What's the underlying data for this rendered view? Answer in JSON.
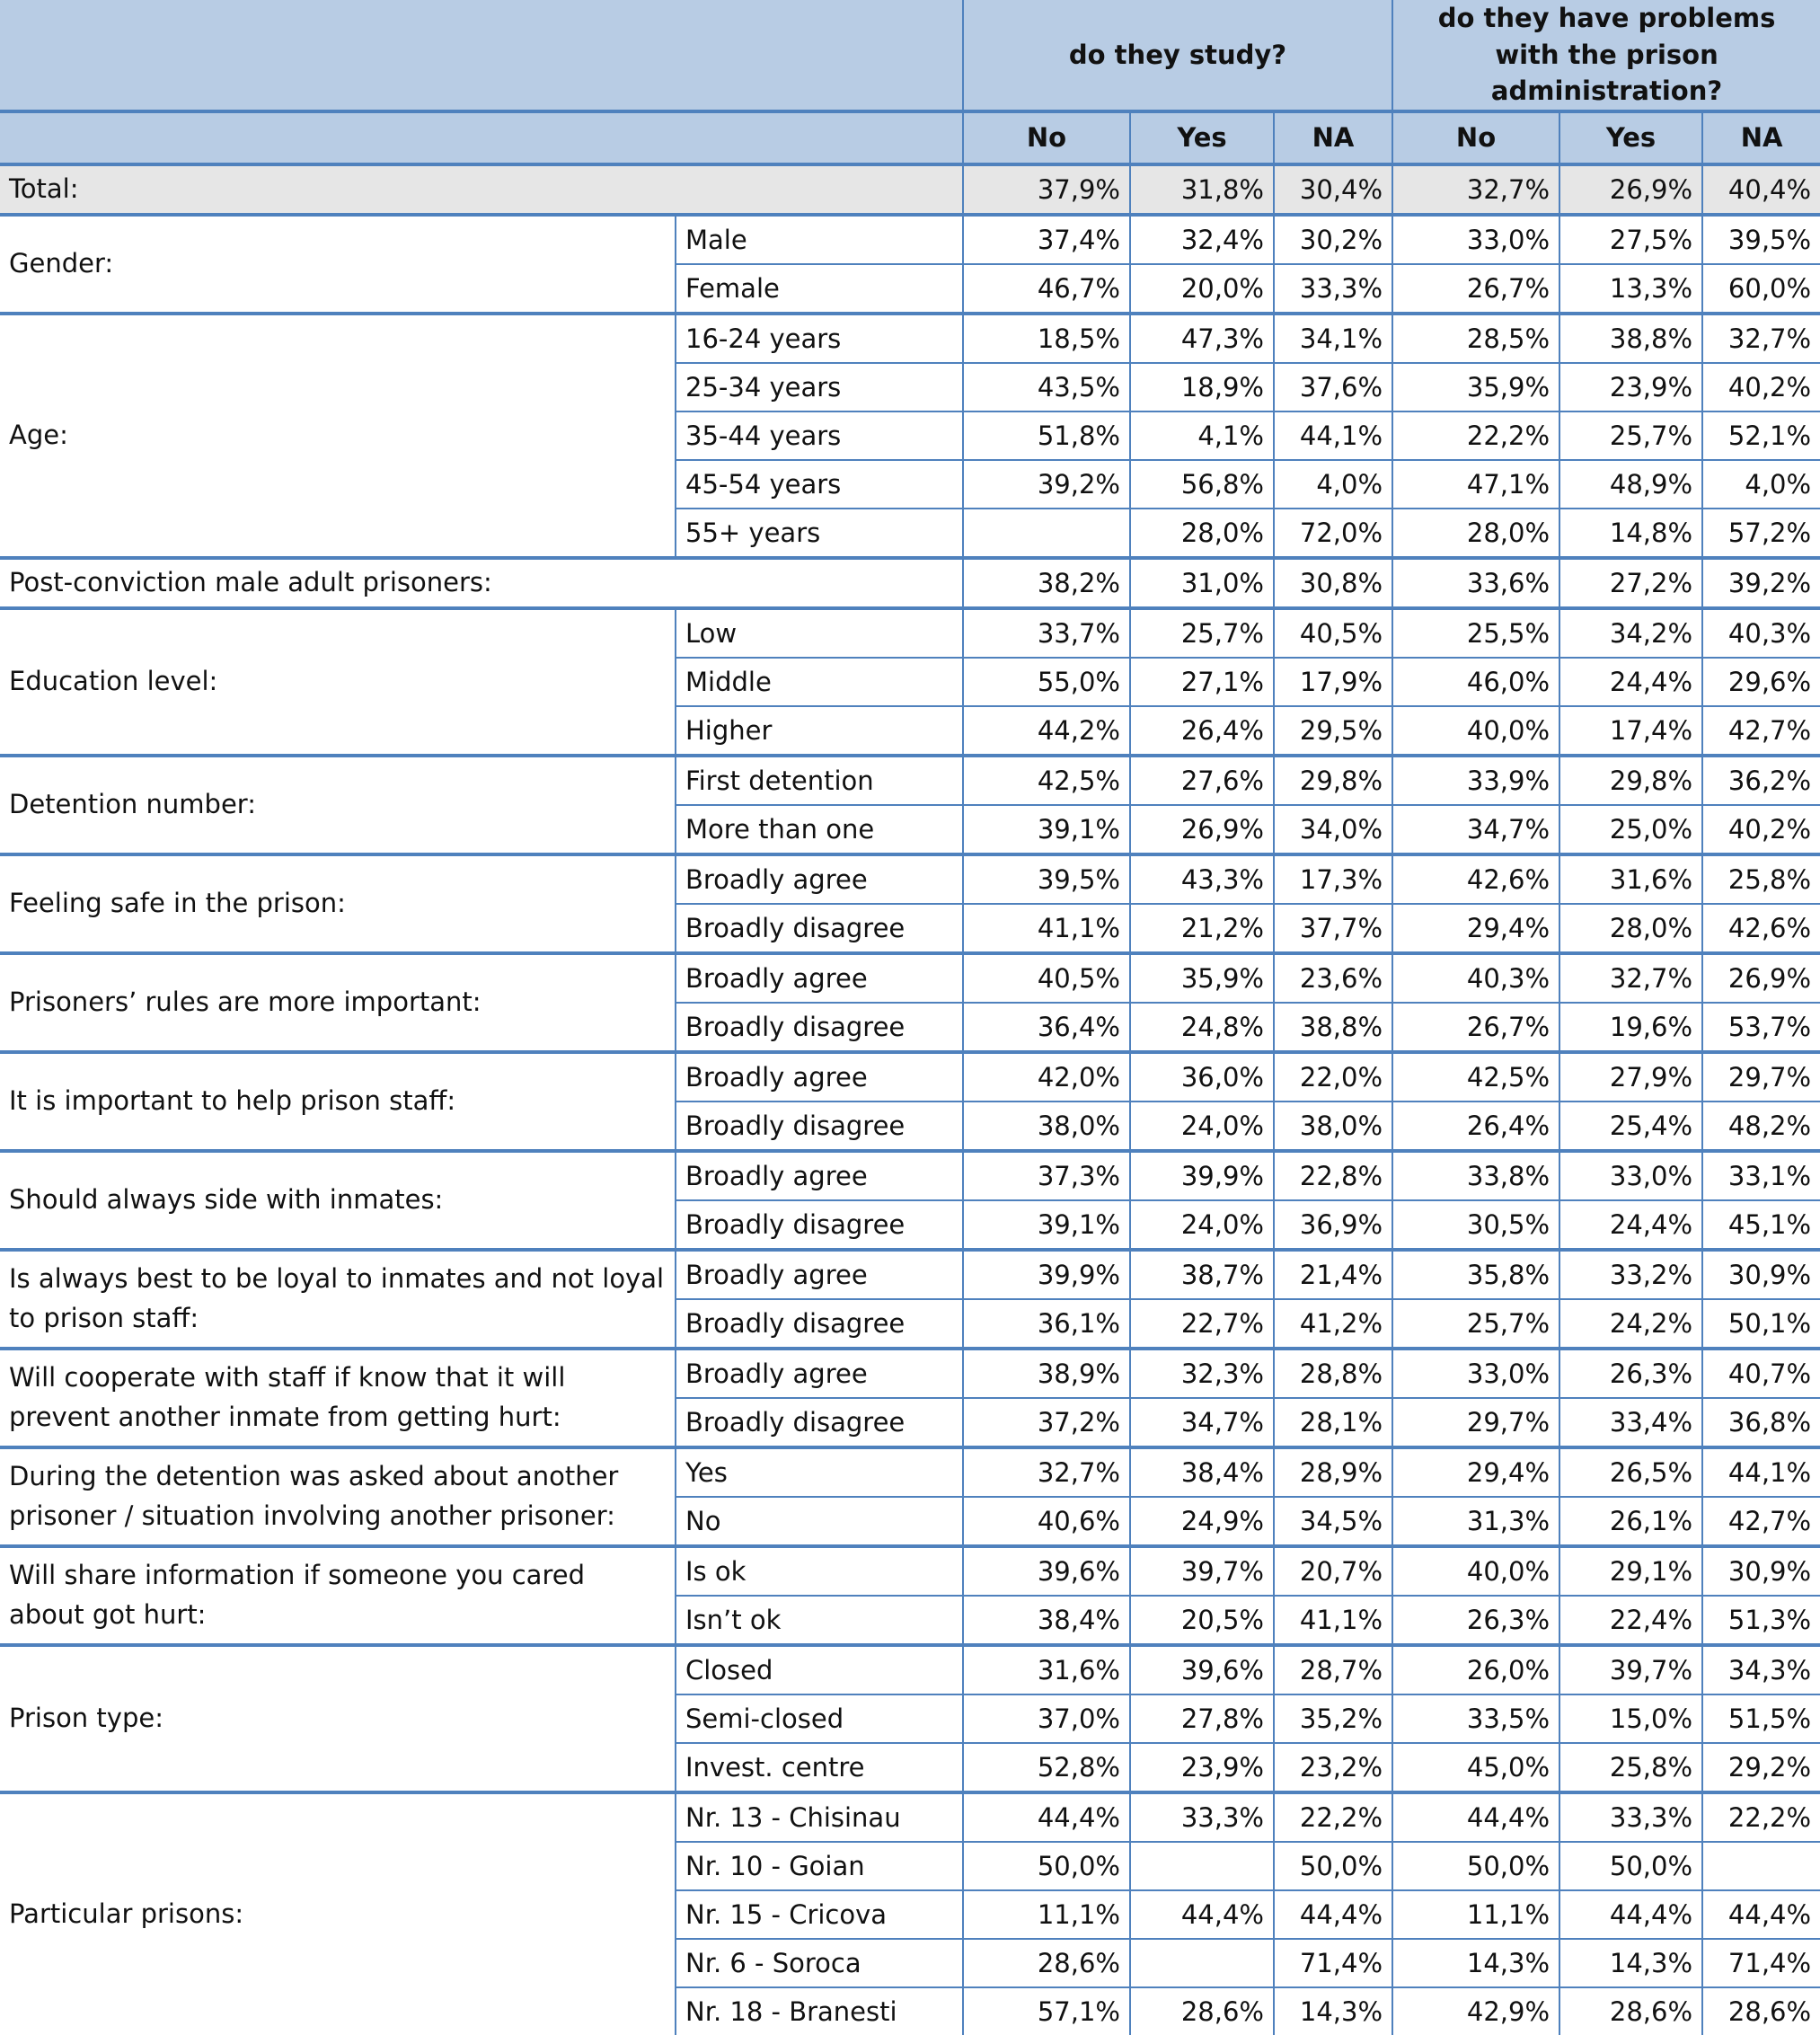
{
  "header": {
    "groups": [
      "do they study?",
      "do they have problems with the prison administration?"
    ],
    "columns": [
      "No",
      "Yes",
      "NA",
      "No",
      "Yes",
      "NA"
    ]
  },
  "table": {
    "groups": [
      {
        "label": "Total:",
        "rows": [
          {
            "values": [
              "37,9%",
              "31,8%",
              "30,4%",
              "32,7%",
              "26,9%",
              "40,4%"
            ]
          }
        ]
      },
      {
        "label": "Gender:",
        "rows": [
          {
            "label": "Male",
            "values": [
              "37,4%",
              "32,4%",
              "30,2%",
              "33,0%",
              "27,5%",
              "39,5%"
            ]
          },
          {
            "label": "Female",
            "values": [
              "46,7%",
              "20,0%",
              "33,3%",
              "26,7%",
              "13,3%",
              "60,0%"
            ]
          }
        ]
      },
      {
        "label": "Age:",
        "rows": [
          {
            "label": "16-24 years",
            "values": [
              "18,5%",
              "47,3%",
              "34,1%",
              "28,5%",
              "38,8%",
              "32,7%"
            ]
          },
          {
            "label": "25-34 years",
            "values": [
              "43,5%",
              "18,9%",
              "37,6%",
              "35,9%",
              "23,9%",
              "40,2%"
            ]
          },
          {
            "label": "35-44 years",
            "values": [
              "51,8%",
              "4,1%",
              "44,1%",
              "22,2%",
              "25,7%",
              "52,1%"
            ]
          },
          {
            "label": "45-54 years",
            "values": [
              "39,2%",
              "56,8%",
              "4,0%",
              "47,1%",
              "48,9%",
              "4,0%"
            ]
          },
          {
            "label": "55+ years",
            "values": [
              null,
              "28,0%",
              "72,0%",
              "28,0%",
              "14,8%",
              "57,2%"
            ]
          }
        ]
      },
      {
        "label": "Post-conviction male adult prisoners:",
        "rows": [
          {
            "values": [
              "38,2%",
              "31,0%",
              "30,8%",
              "33,6%",
              "27,2%",
              "39,2%"
            ]
          }
        ]
      },
      {
        "label": "Education level:",
        "rows": [
          {
            "label": "Low",
            "values": [
              "33,7%",
              "25,7%",
              "40,5%",
              "25,5%",
              "34,2%",
              "40,3%"
            ]
          },
          {
            "label": "Middle",
            "values": [
              "55,0%",
              "27,1%",
              "17,9%",
              "46,0%",
              "24,4%",
              "29,6%"
            ]
          },
          {
            "label": "Higher",
            "values": [
              "44,2%",
              "26,4%",
              "29,5%",
              "40,0%",
              "17,4%",
              "42,7%"
            ]
          }
        ]
      },
      {
        "label": "Detention number:",
        "rows": [
          {
            "label": "First detention",
            "values": [
              "42,5%",
              "27,6%",
              "29,8%",
              "33,9%",
              "29,8%",
              "36,2%"
            ]
          },
          {
            "label": "More than one",
            "values": [
              "39,1%",
              "26,9%",
              "34,0%",
              "34,7%",
              "25,0%",
              "40,2%"
            ]
          }
        ]
      },
      {
        "label": "Feeling safe in the prison:",
        "rows": [
          {
            "label": "Broadly agree",
            "values": [
              "39,5%",
              "43,3%",
              "17,3%",
              "42,6%",
              "31,6%",
              "25,8%"
            ]
          },
          {
            "label": "Broadly disagree",
            "values": [
              "41,1%",
              "21,2%",
              "37,7%",
              "29,4%",
              "28,0%",
              "42,6%"
            ]
          }
        ]
      },
      {
        "label": "Prisoners’ rules are more important:",
        "rows": [
          {
            "label": "Broadly agree",
            "values": [
              "40,5%",
              "35,9%",
              "23,6%",
              "40,3%",
              "32,7%",
              "26,9%"
            ]
          },
          {
            "label": "Broadly disagree",
            "values": [
              "36,4%",
              "24,8%",
              "38,8%",
              "26,7%",
              "19,6%",
              "53,7%"
            ]
          }
        ]
      },
      {
        "label": "It is important to help prison staff:",
        "rows": [
          {
            "label": "Broadly agree",
            "values": [
              "42,0%",
              "36,0%",
              "22,0%",
              "42,5%",
              "27,9%",
              "29,7%"
            ]
          },
          {
            "label": "Broadly disagree",
            "values": [
              "38,0%",
              "24,0%",
              "38,0%",
              "26,4%",
              "25,4%",
              "48,2%"
            ]
          }
        ]
      },
      {
        "label": "Should always side with inmates:",
        "rows": [
          {
            "label": "Broadly agree",
            "values": [
              "37,3%",
              "39,9%",
              "22,8%",
              "33,8%",
              "33,0%",
              "33,1%"
            ]
          },
          {
            "label": "Broadly disagree",
            "values": [
              "39,1%",
              "24,0%",
              "36,9%",
              "30,5%",
              "24,4%",
              "45,1%"
            ]
          }
        ]
      },
      {
        "label": "Is always best to be loyal to inmates and not loyal to prison staff:",
        "rows": [
          {
            "label": "Broadly agree",
            "values": [
              "39,9%",
              "38,7%",
              "21,4%",
              "35,8%",
              "33,2%",
              "30,9%"
            ]
          },
          {
            "label": "Broadly disagree",
            "values": [
              "36,1%",
              "22,7%",
              "41,2%",
              "25,7%",
              "24,2%",
              "50,1%"
            ]
          }
        ]
      },
      {
        "label": "Will cooperate with staff if know that it will prevent another inmate from getting hurt:",
        "rows": [
          {
            "label": "Broadly agree",
            "values": [
              "38,9%",
              "32,3%",
              "28,8%",
              "33,0%",
              "26,3%",
              "40,7%"
            ]
          },
          {
            "label": "Broadly disagree",
            "values": [
              "37,2%",
              "34,7%",
              "28,1%",
              "29,7%",
              "33,4%",
              "36,8%"
            ]
          }
        ]
      },
      {
        "label": "During the detention was asked about another prisoner / situation involving another prisoner:",
        "rows": [
          {
            "label": "Yes",
            "values": [
              "32,7%",
              "38,4%",
              "28,9%",
              "29,4%",
              "26,5%",
              "44,1%"
            ]
          },
          {
            "label": "No",
            "values": [
              "40,6%",
              "24,9%",
              "34,5%",
              "31,3%",
              "26,1%",
              "42,7%"
            ]
          }
        ]
      },
      {
        "label": "Will share information if someone you cared about got hurt:",
        "rows": [
          {
            "label": "Is ok",
            "values": [
              "39,6%",
              "39,7%",
              "20,7%",
              "40,0%",
              "29,1%",
              "30,9%"
            ]
          },
          {
            "label": "Isn’t ok",
            "values": [
              "38,4%",
              "20,5%",
              "41,1%",
              "26,3%",
              "22,4%",
              "51,3%"
            ]
          }
        ]
      },
      {
        "label": "Prison type:",
        "rows": [
          {
            "label": "Closed",
            "values": [
              "31,6%",
              "39,6%",
              "28,7%",
              "26,0%",
              "39,7%",
              "34,3%"
            ]
          },
          {
            "label": "Semi-closed",
            "values": [
              "37,0%",
              "27,8%",
              "35,2%",
              "33,5%",
              "15,0%",
              "51,5%"
            ]
          },
          {
            "label": "Invest. centre",
            "values": [
              "52,8%",
              "23,9%",
              "23,2%",
              "45,0%",
              "25,8%",
              "29,2%"
            ]
          }
        ]
      },
      {
        "label": "Particular prisons:",
        "rows": [
          {
            "label": "Nr. 13 - Chisinau",
            "values": [
              "44,4%",
              "33,3%",
              "22,2%",
              "44,4%",
              "33,3%",
              "22,2%"
            ]
          },
          {
            "label": "Nr. 10 - Goian",
            "values": [
              "50,0%",
              null,
              "50,0%",
              "50,0%",
              "50,0%",
              null
            ]
          },
          {
            "label": "Nr. 15 - Cricova",
            "values": [
              "11,1%",
              "44,4%",
              "44,4%",
              "11,1%",
              "44,4%",
              "44,4%"
            ]
          },
          {
            "label": "Nr. 6 - Soroca",
            "values": [
              "28,6%",
              null,
              "71,4%",
              "14,3%",
              "14,3%",
              "71,4%"
            ]
          },
          {
            "label": "Nr. 18 - Branesti",
            "values": [
              "57,1%",
              "28,6%",
              "14,3%",
              "42,9%",
              "28,6%",
              "28,6%"
            ]
          }
        ]
      }
    ]
  }
}
